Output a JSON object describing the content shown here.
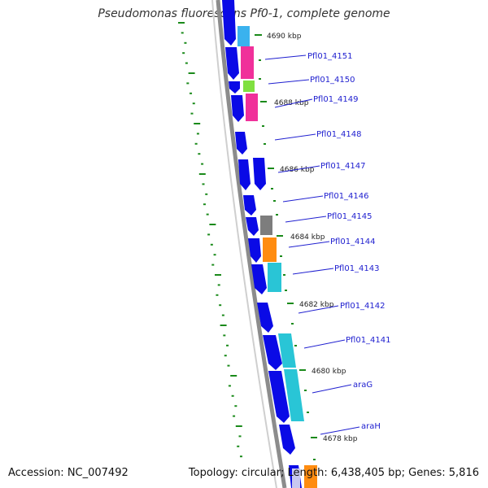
{
  "title": "Pseudomonas fluorescens Pf0-1, complete genome",
  "accession_label": "Accession: NC_007492",
  "summary_label": "Topology: circular; Length: 6,438,405 bp; Genes: 5,816",
  "colors": {
    "gene_arrow": "#0a0ae6",
    "backbone": "#8c8c8c",
    "label_line": "#2020d0",
    "gc_dots": "#1a8a1a",
    "cog_cyan": "#29c5d6",
    "cog_pink": "#f0309a",
    "cog_green": "#80e040",
    "cog_orange": "#ff8c10",
    "cog_gray": "#7d7d7d",
    "cog_lightblue": "#3ab2ee"
  },
  "kbp_ticks": [
    "4690 kbp",
    "4688 kbp",
    "4686 kbp",
    "4684 kbp",
    "4682 kbp",
    "4680 kbp",
    "4678 kbp"
  ],
  "gene_labels": [
    "Pfl01_4151",
    "Pfl01_4150",
    "Pfl01_4149",
    "Pfl01_4148",
    "Pfl01_4147",
    "Pfl01_4146",
    "Pfl01_4145",
    "Pfl01_4144",
    "Pfl01_4143",
    "Pfl01_4142",
    "Pfl01_4141",
    "araG",
    "araH"
  ]
}
